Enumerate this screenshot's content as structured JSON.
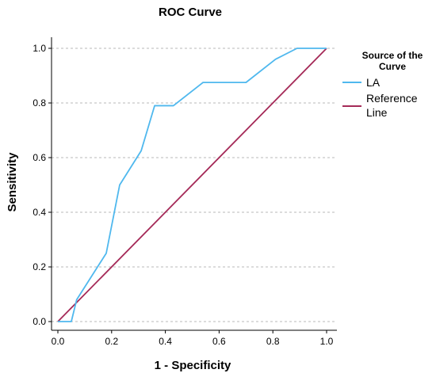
{
  "chart_data": {
    "type": "line",
    "title": "ROC Curve",
    "xlabel": "1 - Specificity",
    "ylabel": "Sensitivity",
    "xlim": [
      0,
      1
    ],
    "ylim": [
      0,
      1
    ],
    "x_ticks": [
      "0.0",
      "0.2",
      "0.4",
      "0.6",
      "0.8",
      "1.0"
    ],
    "y_ticks": [
      "0.0",
      "0.2",
      "0.4",
      "0.6",
      "0.8",
      "1.0"
    ],
    "grid": "horizontal dashed",
    "legend": {
      "title": "Source of the Curve",
      "position": "right",
      "entries": [
        "LA",
        "Reference Line"
      ]
    },
    "series": [
      {
        "name": "LA",
        "color": "#4fb8ee",
        "x": [
          0.0,
          0.05,
          0.07,
          0.18,
          0.23,
          0.31,
          0.36,
          0.43,
          0.54,
          0.7,
          0.81,
          0.89,
          1.0
        ],
        "y": [
          0.0,
          0.0,
          0.08,
          0.25,
          0.5,
          0.625,
          0.79,
          0.79,
          0.875,
          0.875,
          0.96,
          1.0,
          1.0
        ]
      },
      {
        "name": "Reference Line",
        "color": "#a52a58",
        "x": [
          0,
          1
        ],
        "y": [
          0,
          1
        ]
      }
    ]
  }
}
